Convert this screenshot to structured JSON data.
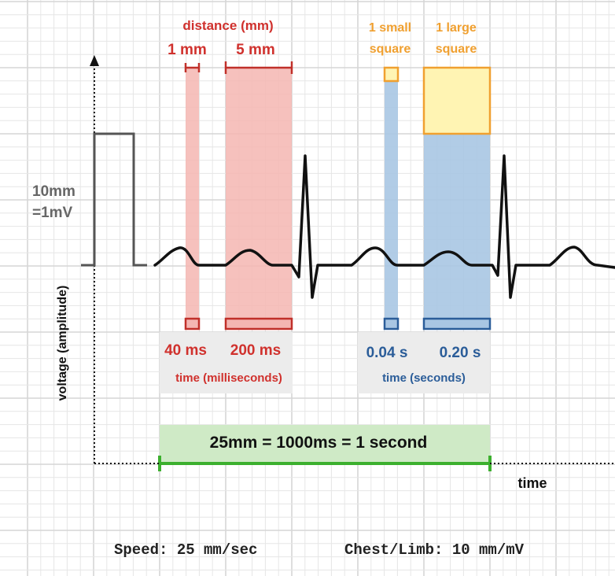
{
  "colors": {
    "grid_minor": "#e6e6e6",
    "grid_major": "#d6d6d6",
    "trace": "#111111",
    "calibration": "#555555",
    "red_fill": "#f4b6b2",
    "red_text": "#d0312d",
    "blue_fill": "#a9c6e3",
    "blue_text": "#2b5d99",
    "orange_fill": "#fff4b3",
    "orange_stroke": "#f0a030",
    "orange_text": "#f0a030",
    "green_fill": "#cfeac6",
    "green_stroke": "#3cb02e",
    "gray_panel": "#ececec"
  },
  "labels": {
    "distance_title": "distance (mm)",
    "one_mm": "1 mm",
    "five_mm": "5 mm",
    "small_square_line1": "1 small",
    "small_square_line2": "square",
    "large_square_line1": "1 large",
    "large_square_line2": "square",
    "calibration_line1": "10mm",
    "calibration_line2": "=1mV",
    "voltage_axis": "voltage (amplitude)",
    "time_40ms": "40 ms",
    "time_200ms": "200 ms",
    "time_ms_caption": "time (milliseconds)",
    "time_004s": "0.04 s",
    "time_020s": "0.20 s",
    "time_s_caption": "time (seconds)",
    "paper_speed_equivalence": "25mm = 1000ms = 1 second",
    "time_axis": "time",
    "speed": "Speed: 25 mm/sec",
    "chest_limb": "Chest/Limb: 10 mm/mV"
  }
}
